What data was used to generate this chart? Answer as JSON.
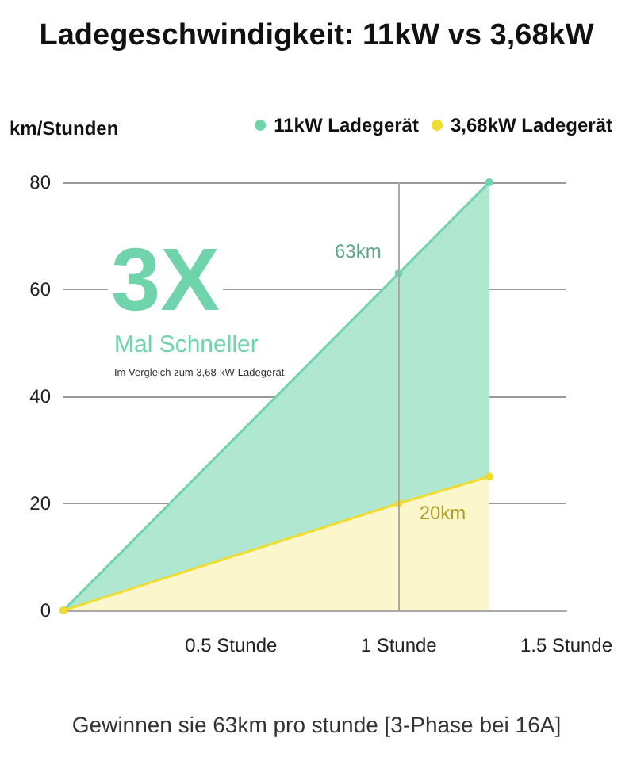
{
  "chart_data": {
    "type": "area",
    "title": "Ladegeschwindigkeit: 11kW vs 3,68kW",
    "ylabel": "km/Stunden",
    "x": [
      0,
      1,
      1.27
    ],
    "series": [
      {
        "name": "11kW Ladegerät",
        "color": "#6fd3ac",
        "values": [
          0,
          63,
          80
        ]
      },
      {
        "name": "3,68kW Ladegerät",
        "color": "#f0dc30",
        "values": [
          0,
          20,
          25
        ]
      }
    ],
    "xlim": [
      0,
      1.5
    ],
    "xticks": [
      {
        "value": 0.5,
        "label": "0.5 Stunde"
      },
      {
        "value": 1,
        "label": "1 Stunde"
      },
      {
        "value": 1.5,
        "label": "1.5 Stunde"
      }
    ],
    "ylim": [
      0,
      80
    ],
    "yticks": [
      0,
      20,
      40,
      60,
      80
    ],
    "ref_lines": [
      {
        "axis": "x",
        "value": 1,
        "color": "#aaaaaa"
      }
    ],
    "annotations": [
      {
        "text": "63km",
        "x": 1,
        "y": 63
      },
      {
        "text": "20km",
        "x": 1,
        "y": 20
      },
      "3X",
      "Mal Schneller",
      "Im Vergleich zum 3,68-kW-Ladegerät",
      "Gewinnen sie 63km pro stunde [3-Phase bei 16A]"
    ],
    "grid": "y",
    "legend": "top right",
    "marker": "circle"
  }
}
